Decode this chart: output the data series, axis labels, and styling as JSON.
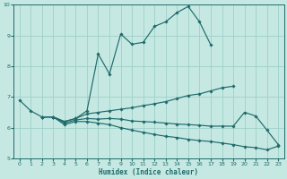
{
  "xlabel": "Humidex (Indice chaleur)",
  "xlim": [
    -0.5,
    23.5
  ],
  "ylim": [
    5,
    10
  ],
  "yticks": [
    5,
    6,
    7,
    8,
    9,
    10
  ],
  "xticks": [
    0,
    1,
    2,
    3,
    4,
    5,
    6,
    7,
    8,
    9,
    10,
    11,
    12,
    13,
    14,
    15,
    16,
    17,
    18,
    19,
    20,
    21,
    22,
    23
  ],
  "bg_color": "#c6e8e2",
  "grid_color": "#9ecfca",
  "line_color": "#1e6b6b",
  "lines": [
    {
      "x": [
        0,
        1,
        2,
        3,
        4,
        5,
        6,
        7,
        8,
        9,
        10,
        11,
        12,
        13,
        14,
        15,
        16,
        17
      ],
      "y": [
        6.9,
        6.55,
        6.35,
        6.35,
        6.2,
        6.3,
        6.55,
        8.4,
        7.75,
        9.05,
        8.72,
        8.78,
        9.3,
        9.45,
        9.75,
        9.95,
        9.45,
        8.7
      ]
    },
    {
      "x": [
        2,
        3,
        4,
        5,
        6,
        7,
        8,
        9,
        10,
        11,
        12,
        13,
        14,
        15,
        16,
        17,
        18,
        19
      ],
      "y": [
        6.35,
        6.35,
        6.2,
        6.3,
        6.45,
        6.5,
        6.55,
        6.6,
        6.65,
        6.72,
        6.78,
        6.85,
        6.95,
        7.05,
        7.1,
        7.2,
        7.3,
        7.35
      ]
    },
    {
      "x": [
        2,
        3,
        4,
        5,
        6,
        7,
        8,
        9,
        10,
        11,
        12,
        13,
        14,
        15,
        16,
        17,
        18,
        19,
        20,
        21,
        22,
        23
      ],
      "y": [
        6.35,
        6.35,
        6.15,
        6.25,
        6.3,
        6.28,
        6.3,
        6.28,
        6.22,
        6.2,
        6.18,
        6.15,
        6.12,
        6.1,
        6.08,
        6.05,
        6.05,
        6.05,
        6.5,
        6.38,
        5.92,
        5.45
      ]
    },
    {
      "x": [
        2,
        3,
        4,
        5,
        6,
        7,
        8,
        9,
        10,
        11,
        12,
        13,
        14,
        15,
        16,
        17,
        18,
        19,
        20,
        21,
        22,
        23
      ],
      "y": [
        6.35,
        6.35,
        6.1,
        6.2,
        6.2,
        6.15,
        6.1,
        6.0,
        5.92,
        5.85,
        5.78,
        5.72,
        5.68,
        5.62,
        5.58,
        5.55,
        5.5,
        5.45,
        5.38,
        5.35,
        5.28,
        5.4
      ]
    }
  ]
}
